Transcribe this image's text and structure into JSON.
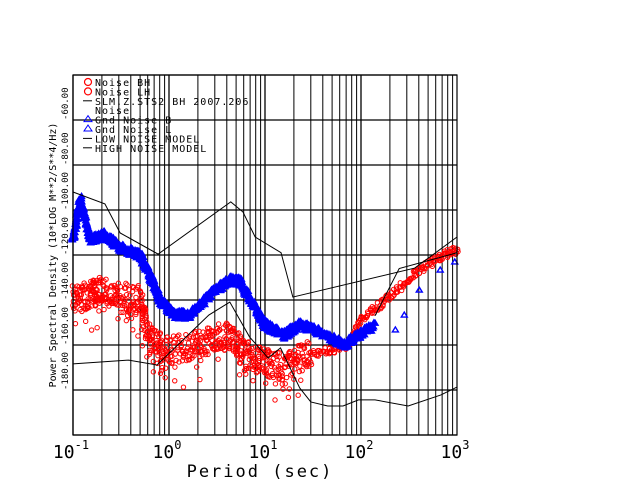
{
  "chart_data": {
    "type": "scatter",
    "title": "",
    "xlabel": "Period (sec)",
    "ylabel": "Power Spectral Density (10*LOG M**2/S**4/Hz)",
    "xscale": "log",
    "xlim": [
      0.1,
      1000
    ],
    "ylim": [
      -200,
      -40
    ],
    "grid": true,
    "x_tick_labels": [
      {
        "base": "10",
        "exp": "-1",
        "value": 0.1
      },
      {
        "base": "10",
        "exp": "0",
        "value": 1
      },
      {
        "base": "10",
        "exp": "1",
        "value": 10
      },
      {
        "base": "10",
        "exp": "2",
        "value": 100
      },
      {
        "base": "10",
        "exp": "3",
        "value": 1000
      }
    ],
    "y_tick_labels": [
      {
        "label": "-60.00",
        "value": -60
      },
      {
        "label": "-80.00",
        "value": -80
      },
      {
        "label": "-100.00",
        "value": -100
      },
      {
        "label": "-120.00",
        "value": -120
      },
      {
        "label": "-140.00",
        "value": -140
      },
      {
        "label": "-160.00",
        "value": -160
      },
      {
        "label": "-180.00",
        "value": -180
      }
    ],
    "legend_position": "top-left",
    "legend": [
      {
        "label": "Noise BH",
        "symbol": "circle",
        "color": "#ff0000"
      },
      {
        "label": "Noise LH",
        "symbol": "circle",
        "color": "#ff0000"
      },
      {
        "label": "SLM.Z.STS2 BH  2007.206",
        "symbol": "line",
        "color": "#000000"
      },
      {
        "label": "Noise",
        "symbol": "none",
        "color": "#000000"
      },
      {
        "label": "Gnd Noise B",
        "symbol": "triangle",
        "color": "#0000ff"
      },
      {
        "label": "Gnd Noise L",
        "symbol": "triangle",
        "color": "#0000ff"
      },
      {
        "label": "LOW NOISE MODEL",
        "symbol": "line",
        "color": "#000000"
      },
      {
        "label": "HIGH NOISE MODEL",
        "symbol": "line",
        "color": "#000000"
      }
    ],
    "series": [
      {
        "name": "Noise BH",
        "kind": "circles",
        "color": "#ff0000",
        "x": [
          0.1,
          0.15,
          0.19,
          0.31,
          0.5,
          0.63,
          0.91,
          1.66,
          2.67,
          4.3,
          6.2,
          10,
          16,
          26,
          47.5,
          77,
          102,
          158,
          255,
          412,
          665,
          1000
        ],
        "y": [
          -140,
          -137.8,
          -135.6,
          -137.8,
          -140,
          -157.8,
          -162.2,
          -161.3,
          -157.8,
          -155.6,
          -164.4,
          -167.6,
          -170.2,
          -164.4,
          -162.2,
          -160,
          -148,
          -142.2,
          -134.7,
          -126.7,
          -120.9,
          -117.8
        ]
      },
      {
        "name": "Gnd Noise B",
        "kind": "triangles",
        "color": "#0000ff",
        "x": [
          0.1,
          0.12,
          0.15,
          0.215,
          0.31,
          0.5,
          0.63,
          0.805,
          1.15,
          1.66,
          2.67,
          4.3,
          5.5,
          7.0,
          10,
          16,
          23,
          33,
          68,
          137
        ],
        "y": [
          -113.3,
          -95,
          -113.3,
          -111.1,
          -116.9,
          -120,
          -128.9,
          -140,
          -146.7,
          -146.7,
          -137.8,
          -131.1,
          -132,
          -140,
          -151.1,
          -155.6,
          -151.1,
          -153.3,
          -160,
          -151.1
        ]
      },
      {
        "name": "Gnd Noise L",
        "kind": "triangles",
        "color": "#0000ff",
        "x": [
          225,
          285,
          412,
          665,
          950
        ],
        "y": [
          -153.3,
          -146.7,
          -135.6,
          -126.7,
          -123.1
        ]
      },
      {
        "name": "Noise",
        "kind": "line",
        "color": "#000000",
        "x": [
          140,
          250,
          1000
        ],
        "y": [
          -147,
          -126,
          -119
        ]
      },
      {
        "name": "LOW NOISE MODEL",
        "kind": "line",
        "color": "#000000",
        "x": [
          0.1,
          0.38,
          0.75,
          2.6,
          4.3,
          6.9,
          10.8,
          14.5,
          23,
          30,
          45,
          65,
          94,
          140,
          310,
          680,
          1000
        ],
        "y": [
          -168.4,
          -166.7,
          -168.9,
          -146.7,
          -140.9,
          -156.4,
          -165.8,
          -161.3,
          -179.1,
          -185.3,
          -187.1,
          -187.1,
          -184.4,
          -184.4,
          -187.1,
          -182.2,
          -178.7
        ]
      },
      {
        "name": "HIGH NOISE MODEL",
        "kind": "line",
        "color": "#000000",
        "x": [
          0.1,
          0.215,
          0.31,
          0.77,
          4.4,
          5.9,
          7.9,
          14.7,
          19.5,
          363,
          1000
        ],
        "y": [
          -92,
          -97.3,
          -110.2,
          -119.6,
          -96.4,
          -100.9,
          -112,
          -119,
          -138.7,
          -125.8,
          -112
        ]
      }
    ]
  }
}
